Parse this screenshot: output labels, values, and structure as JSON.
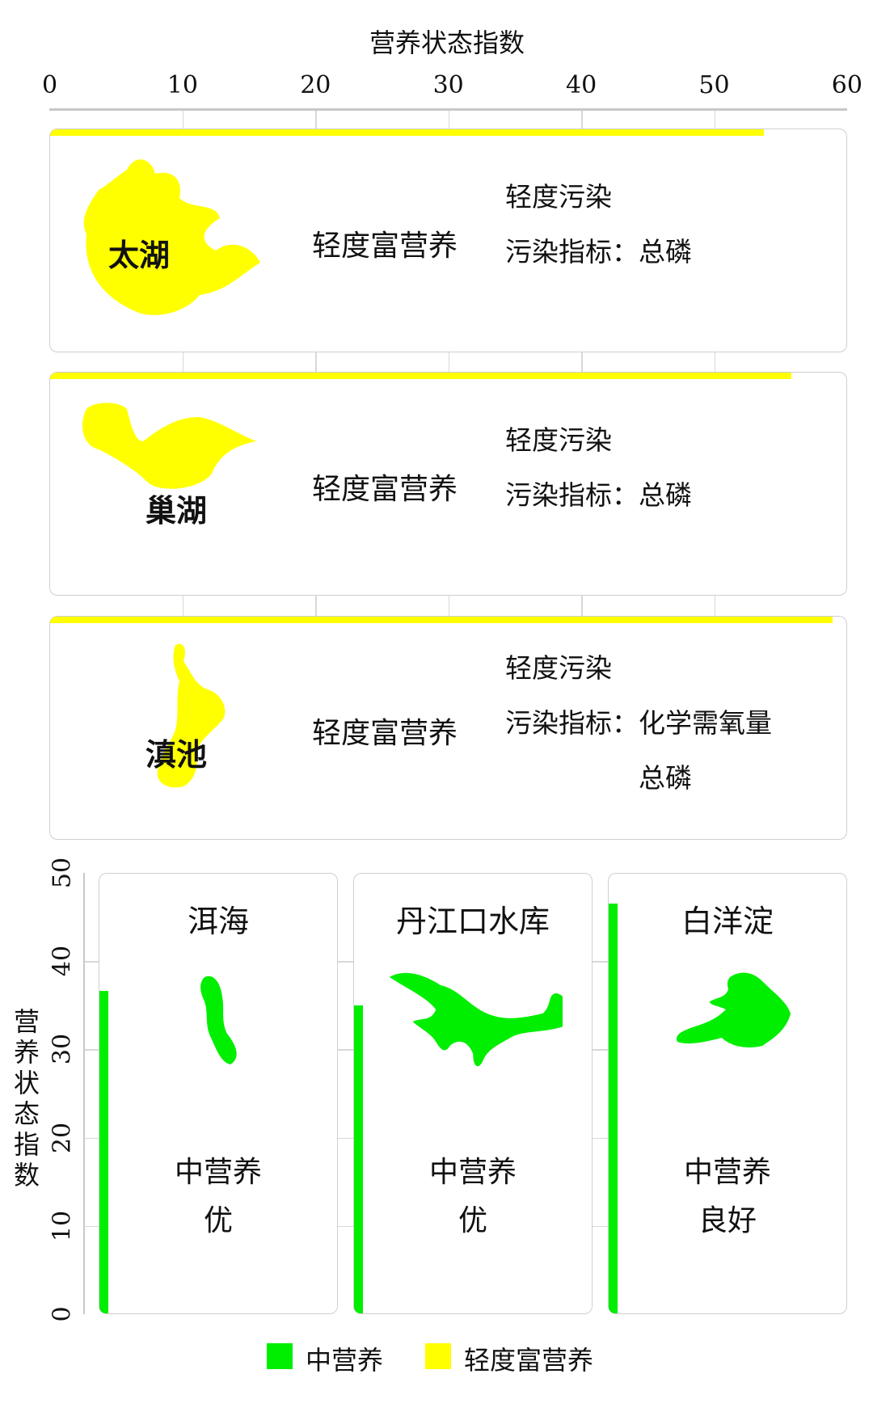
{
  "colors": {
    "mid": "#00ee00",
    "light_eutrophic": "#ffff00",
    "grid": "#d8d8d8"
  },
  "chart_data": [
    {
      "type": "bar",
      "orientation": "horizontal",
      "xlabel": "营养状态指数",
      "xlim": [
        0,
        60
      ],
      "ticks": [
        "0",
        "10",
        "20",
        "30",
        "40",
        "50",
        "60"
      ],
      "grid": true,
      "categories": [
        "太湖",
        "巢湖",
        "滇池"
      ],
      "values": [
        53.7,
        55.8,
        58.9
      ],
      "status": [
        "轻度富营养",
        "轻度富营养",
        "轻度富营养"
      ],
      "pollution": [
        "轻度污染",
        "轻度污染",
        "轻度污染"
      ],
      "indicator_label": "污染指标：",
      "indicators": [
        [
          "总磷"
        ],
        [
          "总磷"
        ],
        [
          "化学需氧量",
          "总磷"
        ]
      ]
    },
    {
      "type": "bar",
      "orientation": "vertical",
      "ylabel": "营养状态指数",
      "ylim": [
        0,
        50
      ],
      "ticks": [
        "0",
        "10",
        "20",
        "30",
        "40",
        "50"
      ],
      "grid": true,
      "categories": [
        "洱海",
        "丹江口水库",
        "白洋淀"
      ],
      "values": [
        36.5,
        34.9,
        46.4
      ],
      "status": [
        "中营养",
        "中营养",
        "中营养"
      ],
      "quality": [
        "优",
        "优",
        "良好"
      ]
    }
  ],
  "legend": [
    {
      "label": "中营养",
      "color": "#00ee00"
    },
    {
      "label": "轻度富营养",
      "color": "#ffff00"
    }
  ]
}
